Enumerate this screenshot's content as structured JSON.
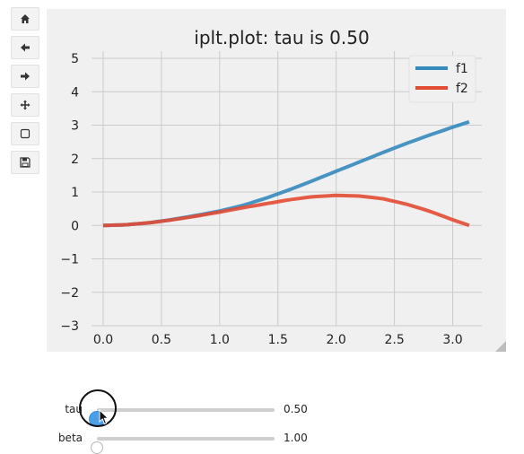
{
  "toolbar": {
    "buttons": [
      {
        "name": "home-icon",
        "tooltip": ""
      },
      {
        "name": "back-arrow-icon",
        "tooltip": ""
      },
      {
        "name": "forward-arrow-icon",
        "tooltip": ""
      },
      {
        "name": "pan-move-icon",
        "tooltip": ""
      },
      {
        "name": "zoom-rect-icon",
        "tooltip": ""
      },
      {
        "name": "save-disk-icon",
        "tooltip": ""
      }
    ]
  },
  "figure": {
    "background": "#f0f0f0",
    "plot_background": "#f0f0f0",
    "grid_color": "#cbcbcb"
  },
  "chart_data": {
    "type": "line",
    "title": "iplt.plot: tau is 0.50",
    "xlabel": "",
    "ylabel": "",
    "xlim": [
      -0.1,
      3.25
    ],
    "ylim": [
      -3,
      5
    ],
    "xticks": [
      0.0,
      0.5,
      1.0,
      1.5,
      2.0,
      2.5,
      3.0
    ],
    "xtick_labels": [
      "0.0",
      "0.5",
      "1.0",
      "1.5",
      "2.0",
      "2.5",
      "3.0"
    ],
    "yticks": [
      -3,
      -2,
      -1,
      0,
      1,
      2,
      3,
      4,
      5
    ],
    "ytick_labels": [
      "−3",
      "−2",
      "−1",
      "0",
      "1",
      "2",
      "3",
      "4",
      "5"
    ],
    "grid": true,
    "legend_position": "top-right",
    "series": [
      {
        "name": "f1",
        "color": "#348abd",
        "x": [
          0,
          0.2,
          0.4,
          0.6,
          0.8,
          1.0,
          1.2,
          1.4,
          1.6,
          1.8,
          2.0,
          2.2,
          2.4,
          2.6,
          2.8,
          3.0,
          3.1416
        ],
        "y": [
          0.0,
          0.02,
          0.08,
          0.18,
          0.3,
          0.43,
          0.6,
          0.82,
          1.07,
          1.34,
          1.62,
          1.9,
          2.18,
          2.45,
          2.7,
          2.94,
          3.1
        ]
      },
      {
        "name": "f2",
        "color": "#e24a33",
        "x": [
          0,
          0.2,
          0.4,
          0.6,
          0.8,
          1.0,
          1.2,
          1.4,
          1.6,
          1.8,
          2.0,
          2.2,
          2.4,
          2.6,
          2.8,
          3.0,
          3.1416
        ],
        "y": [
          0.0,
          0.02,
          0.08,
          0.17,
          0.28,
          0.4,
          0.53,
          0.65,
          0.77,
          0.86,
          0.9,
          0.88,
          0.8,
          0.64,
          0.43,
          0.17,
          0.0
        ]
      }
    ]
  },
  "sliders": [
    {
      "label": "tau",
      "value_text": "0.50",
      "value": 0.5,
      "min": 0.5,
      "max": 10,
      "active": true
    },
    {
      "label": "beta",
      "value_text": "1.00",
      "value": 1.0,
      "min": 1.0,
      "max": 10,
      "active": false
    }
  ]
}
